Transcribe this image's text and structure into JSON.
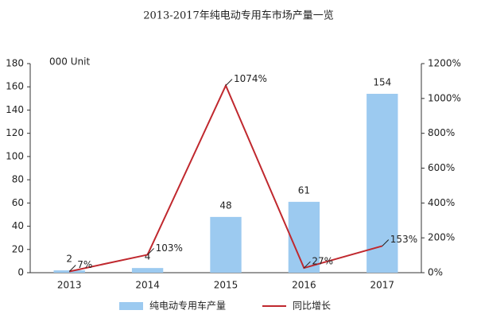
{
  "chart_data": {
    "type": "combo",
    "title": "2013-2017年纯电动专用车市场产量一览",
    "unit_label": "000 Unit",
    "categories": [
      "2013",
      "2014",
      "2015",
      "2016",
      "2017"
    ],
    "series": [
      {
        "name": "纯电动专用车产量",
        "type": "bar",
        "color": "#9ccaf0",
        "values": [
          2,
          4,
          48,
          61,
          154
        ]
      },
      {
        "name": "同比增长",
        "type": "line",
        "axis": "y2",
        "color": "#c0282e",
        "values": [
          7,
          103,
          1074,
          27,
          153
        ],
        "value_labels": [
          "7%",
          "103%",
          "1074%",
          "27%",
          "153%"
        ]
      }
    ],
    "ylim": [
      0,
      180
    ],
    "yticks": [
      0,
      20,
      40,
      60,
      80,
      100,
      120,
      140,
      160,
      180
    ],
    "y2lim": [
      0,
      1200
    ],
    "y2ticks": [
      {
        "value": 0,
        "label": "0%"
      },
      {
        "value": 200,
        "label": "200%"
      },
      {
        "value": 400,
        "label": "400%"
      },
      {
        "value": 600,
        "label": "600%"
      },
      {
        "value": 800,
        "label": "800%"
      },
      {
        "value": 1000,
        "label": "1000%"
      },
      {
        "value": 1200,
        "label": "1200%"
      }
    ],
    "legend": "bottom"
  }
}
